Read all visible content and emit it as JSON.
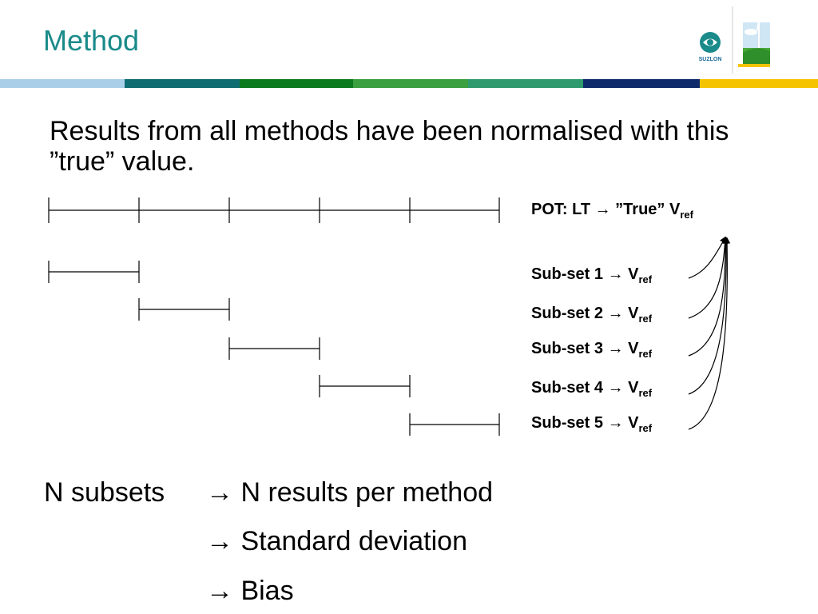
{
  "title": "Method",
  "logo": {
    "text": "SUZLON"
  },
  "intro": "Results from all methods have been normalised with this ”true” value.",
  "labels": {
    "pot": {
      "main": "POT: LT → ”True” V",
      "sub": "ref"
    },
    "subsets": [
      {
        "main": "Sub-set 1 → V",
        "sub": "ref"
      },
      {
        "main": "Sub-set 2 → V",
        "sub": "ref"
      },
      {
        "main": "Sub-set 3 → V",
        "sub": "ref"
      },
      {
        "main": "Sub-set 4 → V",
        "sub": "ref"
      },
      {
        "main": "Sub-set 5 → V",
        "sub": "ref"
      }
    ]
  },
  "bottom": {
    "left": "N subsets",
    "results": "→ N results per method",
    "stddev": "→ Standard deviation",
    "bias": "→ Bias"
  },
  "colors": {
    "title": "#1a8a8a",
    "stripe": [
      "#a9cfe8",
      "#0f6d72",
      "#0b7a1e",
      "#3aa040",
      "#2e9a6e",
      "#0f2a6a",
      "#f5c400"
    ]
  }
}
